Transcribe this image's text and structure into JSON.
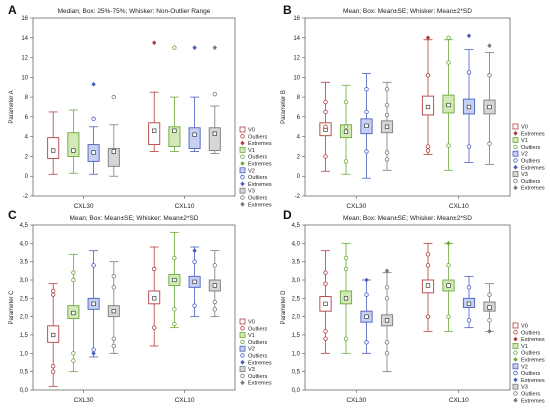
{
  "colors": {
    "V0": "#b0413e",
    "V1": "#6aaa3a",
    "V2": "#4a5fc1",
    "V3": "#7a7a7a",
    "V0_fill": "#ffffff",
    "V1_fill": "#d3eab8",
    "V2_fill": "#c6d0f2",
    "V3_fill": "#d6d6d6"
  },
  "chart_data": [
    {
      "panel": "A",
      "type": "box",
      "title": "Median; Box: 25%-75%; Whisker: Non-Outlier Range",
      "ylabel": "Parameter A",
      "ylim": [
        -2,
        16
      ],
      "yticks": [
        -2,
        0,
        2,
        4,
        6,
        8,
        10,
        12,
        14,
        16
      ],
      "categories": [
        "CXL30",
        "CXL10"
      ],
      "legend": [
        {
          "label": "V0",
          "kind": "box",
          "series": "V0"
        },
        {
          "label": "Outliers",
          "kind": "outlier",
          "series": "V0"
        },
        {
          "label": "Extremes",
          "kind": "extreme",
          "series": "V0"
        },
        {
          "label": "V1",
          "kind": "box",
          "series": "V1"
        },
        {
          "label": "Outliers",
          "kind": "outlier",
          "series": "V1"
        },
        {
          "label": "Extremes",
          "kind": "extreme",
          "series": "V1"
        },
        {
          "label": "V2",
          "kind": "box",
          "series": "V2"
        },
        {
          "label": "Outliers",
          "kind": "outlier",
          "series": "V2"
        },
        {
          "label": "Extremes",
          "kind": "extreme",
          "series": "V2"
        },
        {
          "label": "V3",
          "kind": "box",
          "series": "V3"
        },
        {
          "label": "Outliers",
          "kind": "outlier",
          "series": "V3"
        },
        {
          "label": "Extremes",
          "kind": "extreme",
          "series": "V3"
        }
      ],
      "series": [
        {
          "name": "V0",
          "groups": [
            {
              "low": 0.2,
              "q1": 1.8,
              "center": 2.6,
              "q3": 3.9,
              "high": 6.5,
              "outliers": [],
              "extremes": []
            },
            {
              "low": 2.5,
              "q1": 3.2,
              "center": 4.6,
              "q3": 5.4,
              "high": 8.5,
              "outliers": [],
              "extremes": [
                13.5
              ]
            }
          ]
        },
        {
          "name": "V1",
          "groups": [
            {
              "low": 0.3,
              "q1": 2.0,
              "center": 2.6,
              "q3": 4.4,
              "high": 6.7,
              "outliers": [],
              "extremes": []
            },
            {
              "low": 2.5,
              "q1": 3.0,
              "center": 4.6,
              "q3": 5.0,
              "high": 8.0,
              "outliers": [
                13.0
              ],
              "extremes": []
            }
          ]
        },
        {
          "name": "V2",
          "groups": [
            {
              "low": 0.2,
              "q1": 1.5,
              "center": 2.4,
              "q3": 3.2,
              "high": 5.0,
              "outliers": [
                5.8
              ],
              "extremes": [
                9.3
              ]
            },
            {
              "low": 2.5,
              "q1": 2.8,
              "center": 4.2,
              "q3": 4.9,
              "high": 8.0,
              "outliers": [],
              "extremes": [
                13.0
              ]
            }
          ]
        },
        {
          "name": "V3",
          "groups": [
            {
              "low": 0.0,
              "q1": 1.0,
              "center": 2.5,
              "q3": 2.8,
              "high": 5.2,
              "outliers": [
                8.0
              ],
              "extremes": []
            },
            {
              "low": 2.3,
              "q1": 2.6,
              "center": 4.3,
              "q3": 4.9,
              "high": 7.1,
              "outliers": [
                8.3
              ],
              "extremes": [
                13.0
              ]
            }
          ]
        }
      ]
    },
    {
      "panel": "B",
      "type": "box",
      "title": "Mean; Box: Mean±SE; Whisker: Mean±2*SD",
      "ylabel": "Parameter B",
      "ylim": [
        -2,
        16
      ],
      "yticks": [
        -2,
        0,
        2,
        4,
        6,
        8,
        10,
        12,
        14,
        16
      ],
      "categories": [
        "CXL30",
        "CXL10"
      ],
      "legend": [
        {
          "label": "V0",
          "kind": "box",
          "series": "V0"
        },
        {
          "label": "Extremes",
          "kind": "extreme",
          "series": "V0"
        },
        {
          "label": "V1",
          "kind": "box",
          "series": "V1"
        },
        {
          "label": "Outliers",
          "kind": "outlier",
          "series": "V1"
        },
        {
          "label": "V2",
          "kind": "box",
          "series": "V2"
        },
        {
          "label": "Outliers",
          "kind": "outlier",
          "series": "V2"
        },
        {
          "label": "Extremes",
          "kind": "extreme",
          "series": "V2"
        },
        {
          "label": "V3",
          "kind": "box",
          "series": "V3"
        },
        {
          "label": "Outliers",
          "kind": "outlier",
          "series": "V3"
        },
        {
          "label": "Extremes",
          "kind": "extreme",
          "series": "V3"
        }
      ],
      "series": [
        {
          "name": "V0",
          "groups": [
            {
              "low": 0.5,
              "q1": 4.1,
              "center": 4.7,
              "q3": 5.4,
              "high": 9.5,
              "outliers": [
                2.0,
                5.0,
                6.5,
                7.5
              ],
              "extremes": []
            },
            {
              "low": 2.2,
              "q1": 6.2,
              "center": 7.0,
              "q3": 8.1,
              "high": 13.8,
              "outliers": [
                2.6,
                3.0,
                10.2
              ],
              "extremes": [
                14.0
              ]
            }
          ]
        },
        {
          "name": "V1",
          "groups": [
            {
              "low": 0.2,
              "q1": 3.9,
              "center": 4.5,
              "q3": 5.2,
              "high": 9.2,
              "outliers": [
                1.5,
                5.0,
                7.5
              ],
              "extremes": []
            },
            {
              "low": 0.6,
              "q1": 6.4,
              "center": 7.2,
              "q3": 8.2,
              "high": 13.8,
              "outliers": [
                3.1,
                11.5,
                14.0
              ],
              "extremes": []
            }
          ]
        },
        {
          "name": "V2",
          "groups": [
            {
              "low": -0.2,
              "q1": 4.3,
              "center": 5.1,
              "q3": 5.8,
              "high": 10.4,
              "outliers": [
                2.5,
                6.5,
                8.8
              ],
              "extremes": []
            },
            {
              "low": 1.4,
              "q1": 6.3,
              "center": 7.0,
              "q3": 7.8,
              "high": 12.8,
              "outliers": [
                3.0,
                10.5
              ],
              "extremes": [
                14.2
              ]
            }
          ]
        },
        {
          "name": "V3",
          "groups": [
            {
              "low": 0.6,
              "q1": 4.4,
              "center": 5.0,
              "q3": 5.6,
              "high": 9.5,
              "outliers": [
                1.7,
                2.4,
                6.2,
                7.2,
                8.8
              ],
              "extremes": []
            },
            {
              "low": 1.2,
              "q1": 6.3,
              "center": 7.0,
              "q3": 7.7,
              "high": 12.5,
              "outliers": [
                3.3,
                10.2
              ],
              "extremes": [
                13.2
              ]
            }
          ]
        }
      ]
    },
    {
      "panel": "C",
      "type": "box",
      "title": "Mean; Box: Mean±SE; Whisker: Mean±2*SD",
      "ylabel": "Parameter C",
      "ylim": [
        0,
        4.5
      ],
      "yticks": [
        0,
        0.5,
        1.0,
        1.5,
        2.0,
        2.5,
        3.0,
        3.5,
        4.0,
        4.5
      ],
      "categories": [
        "CXL30",
        "CXL10"
      ],
      "legend": [
        {
          "label": "V0",
          "kind": "box",
          "series": "V0"
        },
        {
          "label": "Outliers",
          "kind": "outlier",
          "series": "V0"
        },
        {
          "label": "V1",
          "kind": "box",
          "series": "V1"
        },
        {
          "label": "Outliers",
          "kind": "outlier",
          "series": "V1"
        },
        {
          "label": "V2",
          "kind": "box",
          "series": "V2"
        },
        {
          "label": "Outliers",
          "kind": "outlier",
          "series": "V2"
        },
        {
          "label": "Extremes",
          "kind": "extreme",
          "series": "V2"
        },
        {
          "label": "V3",
          "kind": "box",
          "series": "V3"
        },
        {
          "label": "Outliers",
          "kind": "outlier",
          "series": "V3"
        },
        {
          "label": "Extremes",
          "kind": "extreme",
          "series": "V3"
        }
      ],
      "series": [
        {
          "name": "V0",
          "groups": [
            {
              "low": 0.1,
              "q1": 1.3,
              "center": 1.5,
              "q3": 1.75,
              "high": 2.9,
              "outliers": [
                0.5,
                0.65,
                2.6,
                2.7
              ],
              "extremes": []
            },
            {
              "low": 1.2,
              "q1": 2.35,
              "center": 2.5,
              "q3": 2.7,
              "high": 3.9,
              "outliers": [
                1.7,
                3.3
              ],
              "extremes": []
            }
          ]
        },
        {
          "name": "V1",
          "groups": [
            {
              "low": 0.5,
              "q1": 1.95,
              "center": 2.1,
              "q3": 2.3,
              "high": 3.7,
              "outliers": [
                0.8,
                1.0,
                3.0,
                3.2
              ],
              "extremes": []
            },
            {
              "low": 1.7,
              "q1": 2.85,
              "center": 3.0,
              "q3": 3.15,
              "high": 4.3,
              "outliers": [
                1.8,
                2.2,
                3.6
              ],
              "extremes": []
            }
          ]
        },
        {
          "name": "V2",
          "groups": [
            {
              "low": 0.9,
              "q1": 2.2,
              "center": 2.35,
              "q3": 2.5,
              "high": 3.8,
              "outliers": [
                1.1,
                3.4
              ],
              "extremes": [
                1.0
              ]
            },
            {
              "low": 2.0,
              "q1": 2.8,
              "center": 2.95,
              "q3": 3.1,
              "high": 3.9,
              "outliers": [
                2.3,
                3.5
              ],
              "extremes": [
                3.8
              ]
            }
          ]
        },
        {
          "name": "V3",
          "groups": [
            {
              "low": 1.0,
              "q1": 2.0,
              "center": 2.15,
              "q3": 2.3,
              "high": 3.5,
              "outliers": [
                1.2,
                1.4,
                2.8,
                3.1
              ],
              "extremes": []
            },
            {
              "low": 2.0,
              "q1": 2.7,
              "center": 2.85,
              "q3": 3.0,
              "high": 3.8,
              "outliers": [
                2.2,
                2.4,
                3.4
              ],
              "extremes": []
            }
          ]
        }
      ]
    },
    {
      "panel": "D",
      "type": "box",
      "title": "Mean; Box: Mean±SE; Whisker: Mean±2*SD",
      "ylabel": "Parameter D",
      "ylim": [
        0,
        4.5
      ],
      "yticks": [
        0,
        0.5,
        1.0,
        1.5,
        2.0,
        2.5,
        3.0,
        3.5,
        4.0,
        4.5
      ],
      "categories": [
        "CXL30",
        "CXL10"
      ],
      "legend": [
        {
          "label": "V0",
          "kind": "box",
          "series": "V0"
        },
        {
          "label": "Outliers",
          "kind": "outlier",
          "series": "V0"
        },
        {
          "label": "Extremes",
          "kind": "extreme",
          "series": "V0"
        },
        {
          "label": "V1",
          "kind": "box",
          "series": "V1"
        },
        {
          "label": "Outliers",
          "kind": "outlier",
          "series": "V1"
        },
        {
          "label": "Extremes",
          "kind": "extreme",
          "series": "V1"
        },
        {
          "label": "V2",
          "kind": "box",
          "series": "V2"
        },
        {
          "label": "Outliers",
          "kind": "outlier",
          "series": "V2"
        },
        {
          "label": "Extremes",
          "kind": "extreme",
          "series": "V2"
        },
        {
          "label": "V3",
          "kind": "box",
          "series": "V3"
        },
        {
          "label": "Outliers",
          "kind": "outlier",
          "series": "V3"
        },
        {
          "label": "Extremes",
          "kind": "extreme",
          "series": "V3"
        }
      ],
      "series": [
        {
          "name": "V0",
          "groups": [
            {
              "low": 1.0,
              "q1": 2.15,
              "center": 2.35,
              "q3": 2.55,
              "high": 3.8,
              "outliers": [
                1.4,
                1.6,
                2.9,
                3.2
              ],
              "extremes": []
            },
            {
              "low": 1.6,
              "q1": 2.65,
              "center": 2.85,
              "q3": 3.0,
              "high": 4.0,
              "outliers": [
                2.0,
                3.4,
                3.7
              ],
              "extremes": []
            }
          ]
        },
        {
          "name": "V1",
          "groups": [
            {
              "low": 1.0,
              "q1": 2.35,
              "center": 2.5,
              "q3": 2.7,
              "high": 4.0,
              "outliers": [
                1.4,
                3.3,
                3.6
              ],
              "extremes": []
            },
            {
              "low": 1.6,
              "q1": 2.7,
              "center": 2.85,
              "q3": 3.0,
              "high": 4.0,
              "outliers": [
                2.0,
                3.4
              ],
              "extremes": [
                4.0
              ]
            }
          ]
        },
        {
          "name": "V2",
          "groups": [
            {
              "low": 1.0,
              "q1": 1.85,
              "center": 2.0,
              "q3": 2.15,
              "high": 3.0,
              "outliers": [
                1.3,
                2.6
              ],
              "extremes": [
                3.0
              ]
            },
            {
              "low": 1.7,
              "q1": 2.25,
              "center": 2.35,
              "q3": 2.5,
              "high": 3.1,
              "outliers": [
                1.9,
                2.8
              ],
              "extremes": []
            }
          ]
        },
        {
          "name": "V3",
          "groups": [
            {
              "low": 0.5,
              "q1": 1.75,
              "center": 1.9,
              "q3": 2.05,
              "high": 3.2,
              "outliers": [
                1.0,
                1.3,
                2.5,
                2.8
              ],
              "extremes": [
                3.25
              ]
            },
            {
              "low": 1.6,
              "q1": 2.15,
              "center": 2.25,
              "q3": 2.4,
              "high": 2.9,
              "outliers": [
                1.9,
                2.6
              ],
              "extremes": [
                1.6
              ]
            }
          ]
        }
      ]
    }
  ]
}
